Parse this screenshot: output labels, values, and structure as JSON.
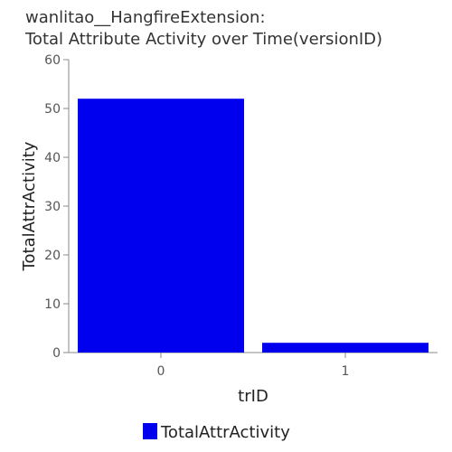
{
  "chart": {
    "title_line1": "wanlitao__HangfireExtension:",
    "title_line2": "Total Attribute Activity over Time(versionID)"
  },
  "chart_data": {
    "type": "bar",
    "title": "wanlitao__HangfireExtension: Total Attribute Activity over Time(versionID)",
    "xlabel": "trID",
    "ylabel": "TotalAttrActivity",
    "categories": [
      "0",
      "1"
    ],
    "series": [
      {
        "name": "TotalAttrActivity",
        "values": [
          52,
          2
        ],
        "color": "#0000ee"
      }
    ],
    "ylim": [
      0,
      60
    ],
    "yticks": [
      0,
      10,
      20,
      30,
      40,
      50,
      60
    ],
    "grid": false,
    "legend": "bottom"
  }
}
